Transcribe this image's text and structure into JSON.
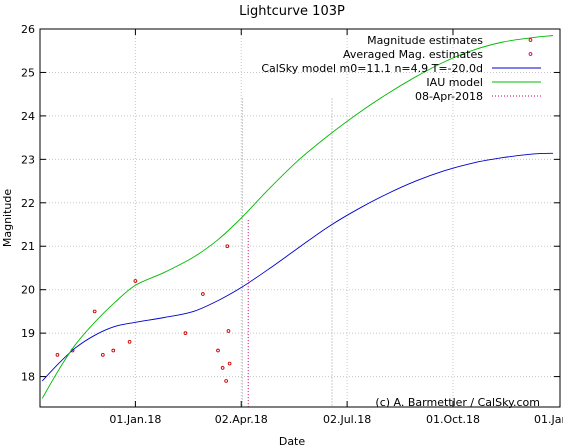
{
  "chart_data": {
    "type": "line",
    "title": "Lightcurve 103P",
    "xlabel": "Date",
    "ylabel": "Magnitude",
    "credit": "(c) A. Barmettler / CalSky.com",
    "grid": true,
    "legend_position": "top-right",
    "xlim": [
      "2017-10-11",
      "2019-01-01"
    ],
    "ylim": [
      17.3,
      26.0
    ],
    "x_ticks": [
      {
        "date": "2018-01-01",
        "label": "01.Jan.18"
      },
      {
        "date": "2018-04-02",
        "label": "02.Apr.18"
      },
      {
        "date": "2018-07-02",
        "label": "02.Jul.18"
      },
      {
        "date": "2018-10-01",
        "label": "01.Oct.18"
      },
      {
        "date": "2019-01-01",
        "label": "01.Jan.19"
      }
    ],
    "y_ticks": [
      18,
      19,
      20,
      21,
      22,
      23,
      24,
      25,
      26
    ],
    "series": [
      {
        "name": "Magnitude estimates",
        "kind": "points",
        "color": "#cc0000",
        "points": [
          {
            "x": "2017-10-26",
            "y": 18.5
          },
          {
            "x": "2017-11-08",
            "y": 18.6
          },
          {
            "x": "2017-11-27",
            "y": 19.5
          },
          {
            "x": "2017-12-04",
            "y": 18.5
          },
          {
            "x": "2017-12-13",
            "y": 18.6
          },
          {
            "x": "2017-12-27",
            "y": 18.8
          },
          {
            "x": "2018-01-01",
            "y": 20.2
          },
          {
            "x": "2018-02-13",
            "y": 19.0
          },
          {
            "x": "2018-02-28",
            "y": 19.9
          },
          {
            "x": "2018-03-13",
            "y": 18.6
          },
          {
            "x": "2018-03-17",
            "y": 18.2
          },
          {
            "x": "2018-03-20",
            "y": 17.9
          },
          {
            "x": "2018-03-21",
            "y": 21.0
          },
          {
            "x": "2018-03-22",
            "y": 19.05
          },
          {
            "x": "2018-03-23",
            "y": 18.3
          }
        ]
      },
      {
        "name": "Averaged Mag. estimates",
        "kind": "points",
        "color": "#cc0066",
        "points": []
      },
      {
        "name": "CalSky model m0=11.1 n=4.9 T=-20.0d",
        "kind": "line",
        "color": "#0000cc",
        "points": [
          {
            "x": "2017-10-13",
            "y": 17.9
          },
          {
            "x": "2017-10-27",
            "y": 18.3
          },
          {
            "x": "2017-11-10",
            "y": 18.65
          },
          {
            "x": "2017-11-27",
            "y": 18.95
          },
          {
            "x": "2017-12-14",
            "y": 19.15
          },
          {
            "x": "2018-01-01",
            "y": 19.25
          },
          {
            "x": "2018-01-26",
            "y": 19.36
          },
          {
            "x": "2018-02-20",
            "y": 19.5
          },
          {
            "x": "2018-03-13",
            "y": 19.75
          },
          {
            "x": "2018-04-02",
            "y": 20.05
          },
          {
            "x": "2018-04-27",
            "y": 20.5
          },
          {
            "x": "2018-05-22",
            "y": 20.98
          },
          {
            "x": "2018-06-16",
            "y": 21.45
          },
          {
            "x": "2018-07-11",
            "y": 21.85
          },
          {
            "x": "2018-08-05",
            "y": 22.2
          },
          {
            "x": "2018-08-30",
            "y": 22.5
          },
          {
            "x": "2018-09-24",
            "y": 22.74
          },
          {
            "x": "2018-10-19",
            "y": 22.92
          },
          {
            "x": "2018-11-13",
            "y": 23.04
          },
          {
            "x": "2018-12-08",
            "y": 23.12
          },
          {
            "x": "2018-12-26",
            "y": 23.14
          }
        ]
      },
      {
        "name": "IAU model",
        "kind": "line",
        "color": "#00bb00",
        "points": [
          {
            "x": "2017-10-13",
            "y": 17.5
          },
          {
            "x": "2017-10-27",
            "y": 18.15
          },
          {
            "x": "2017-11-10",
            "y": 18.72
          },
          {
            "x": "2017-11-27",
            "y": 19.25
          },
          {
            "x": "2017-12-14",
            "y": 19.7
          },
          {
            "x": "2018-01-01",
            "y": 20.1
          },
          {
            "x": "2018-01-26",
            "y": 20.4
          },
          {
            "x": "2018-02-20",
            "y": 20.75
          },
          {
            "x": "2018-03-13",
            "y": 21.15
          },
          {
            "x": "2018-04-02",
            "y": 21.65
          },
          {
            "x": "2018-04-27",
            "y": 22.35
          },
          {
            "x": "2018-05-22",
            "y": 23.0
          },
          {
            "x": "2018-06-16",
            "y": 23.55
          },
          {
            "x": "2018-07-11",
            "y": 24.05
          },
          {
            "x": "2018-08-05",
            "y": 24.5
          },
          {
            "x": "2018-08-30",
            "y": 24.9
          },
          {
            "x": "2018-09-24",
            "y": 25.25
          },
          {
            "x": "2018-10-19",
            "y": 25.52
          },
          {
            "x": "2018-11-13",
            "y": 25.7
          },
          {
            "x": "2018-12-08",
            "y": 25.8
          },
          {
            "x": "2018-12-26",
            "y": 25.85
          }
        ]
      },
      {
        "name": "08-Apr-2018",
        "kind": "vline",
        "color": "#cc0066",
        "x": "2018-04-08",
        "y_range": [
          17.3,
          21.6
        ]
      }
    ],
    "extra_vlines": [
      {
        "x": "2018-04-03",
        "y_range": [
          17.3,
          24.4
        ],
        "color": "#999999"
      },
      {
        "x": "2018-06-19",
        "y_range": [
          17.3,
          24.4
        ],
        "color": "#999999"
      }
    ]
  }
}
